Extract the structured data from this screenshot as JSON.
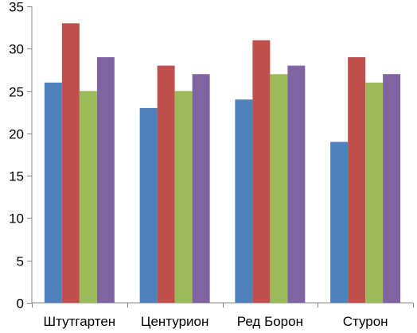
{
  "chart_data": {
    "type": "bar",
    "categories": [
      "Штутгартен",
      "Центурион",
      "Ред Борон",
      "Стурон"
    ],
    "series": [
      {
        "values": [
          26,
          23,
          24,
          19
        ],
        "color": "#4F81BD"
      },
      {
        "values": [
          33,
          28,
          31,
          29
        ],
        "color": "#C0504D"
      },
      {
        "values": [
          25,
          25,
          27,
          26
        ],
        "color": "#9BBB59"
      },
      {
        "values": [
          29,
          27,
          28,
          27
        ],
        "color": "#8064A2"
      }
    ],
    "title": "",
    "xlabel": "",
    "ylabel": "",
    "ylim": [
      0,
      35
    ],
    "yticks": [
      "0",
      "5",
      "10",
      "15",
      "20",
      "25",
      "30",
      "35"
    ],
    "grid": false,
    "legend": "none"
  }
}
